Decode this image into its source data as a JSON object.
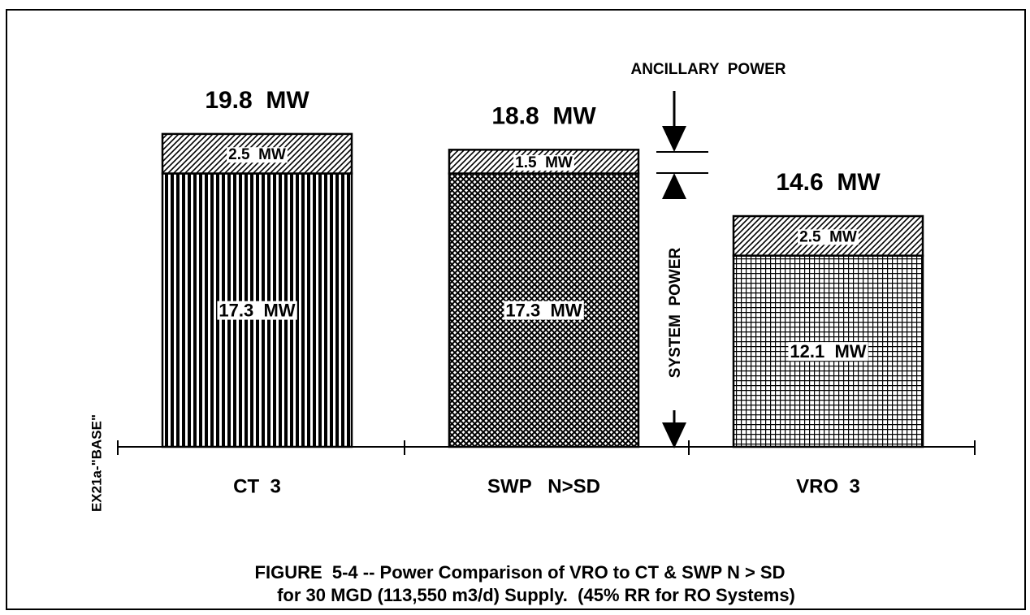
{
  "chart_data": {
    "type": "stacked_bar",
    "categories": [
      "CT  3",
      "SWP   N>SD",
      "VRO  3"
    ],
    "series": [
      {
        "name": "SYSTEM  POWER",
        "color": "#000000",
        "values": [
          17.3,
          17.3,
          12.1
        ],
        "value_labels": [
          "17.3  MW",
          "17.3  MW",
          "12.1  MW"
        ]
      },
      {
        "name": "ANCILLARY  POWER",
        "color": "#000000",
        "values": [
          2.5,
          1.5,
          2.5
        ],
        "value_labels": [
          "2.5  MW",
          "1.5  MW",
          "2.5  MW"
        ]
      }
    ],
    "total_labels": [
      "19.8  MW",
      "18.8  MW",
      "14.6  MW"
    ],
    "side_label": "EX21a-\"BASE\"",
    "caption": [
      "FIGURE  5-4 -- Power Comparison of VRO to CT & SWP N > SD",
      "for 30 MGD (113,550 m3/d) Supply.  (45% RR for RO Systems)"
    ]
  }
}
